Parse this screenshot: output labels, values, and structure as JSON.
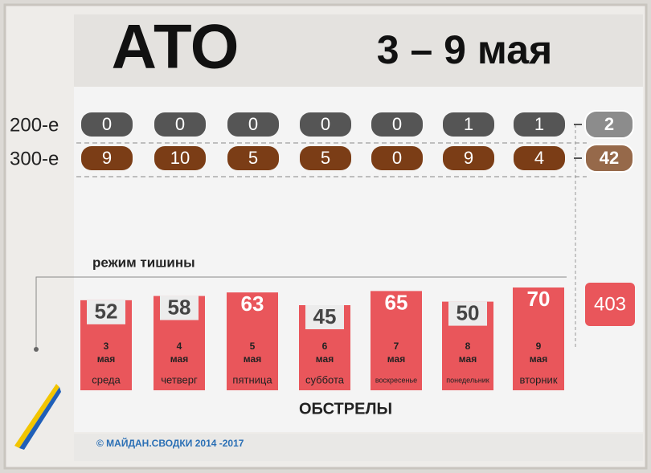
{
  "header": {
    "title": "АТО",
    "period": "3 – 9 мая"
  },
  "killed": {
    "label": "200-е",
    "values": [
      0,
      0,
      0,
      0,
      0,
      1,
      1
    ],
    "total": 2
  },
  "wounded": {
    "label": "300-е",
    "values": [
      9,
      10,
      5,
      5,
      0,
      9,
      4
    ],
    "total": 42
  },
  "ceasefire": "режим тишины",
  "shelling": {
    "label": "ОБСТРЕЛЫ",
    "total": 403,
    "days": [
      {
        "value": 52,
        "date": "3",
        "month": "мая",
        "weekday": "среда"
      },
      {
        "value": 58,
        "date": "4",
        "month": "мая",
        "weekday": "четверг"
      },
      {
        "value": 63,
        "date": "5",
        "month": "мая",
        "weekday": "пятница"
      },
      {
        "value": 45,
        "date": "6",
        "month": "мая",
        "weekday": "суббота"
      },
      {
        "value": 65,
        "date": "7",
        "month": "мая",
        "weekday": "воскресенье"
      },
      {
        "value": 50,
        "date": "8",
        "month": "мая",
        "weekday": "понедельник"
      },
      {
        "value": 70,
        "date": "9",
        "month": "мая",
        "weekday": "вторник"
      }
    ]
  },
  "footer": "© МАЙДАН.СВОДКИ 2014 -2017"
}
